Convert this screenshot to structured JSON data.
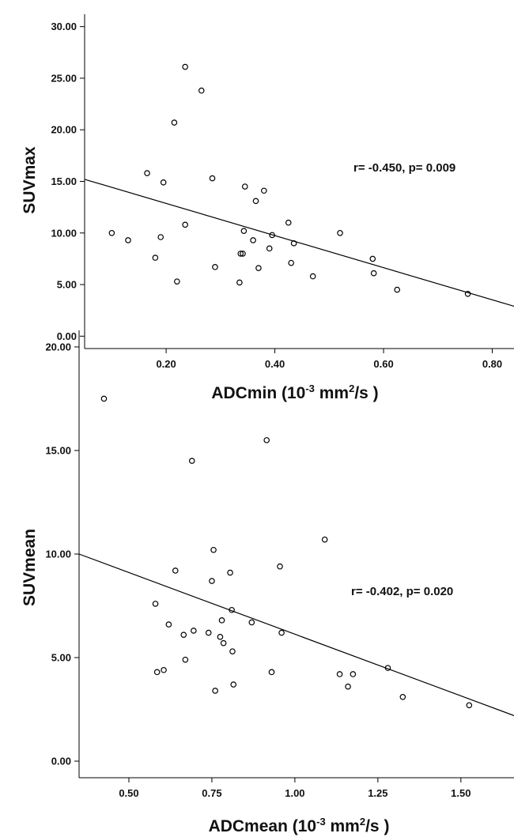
{
  "chart_data": [
    {
      "type": "scatter",
      "xlabel": {
        "main": "ADCmin (10",
        "sup1": "-3",
        "mid": " mm",
        "sup2": "2",
        "tail": "/s )"
      },
      "ylabel": "SUVmax",
      "annotation": "r= -0.450, p= 0.009",
      "xlim": [
        0.05,
        0.84
      ],
      "ylim": [
        -1.2,
        31.2
      ],
      "xticks": [
        0.2,
        0.4,
        0.6,
        0.8
      ],
      "xtick_labels": [
        "0.20",
        "0.40",
        "0.60",
        "0.80"
      ],
      "yticks": [
        0,
        5,
        10,
        15,
        20,
        25,
        30
      ],
      "ytick_labels": [
        "0.00",
        "5.00",
        "10.00",
        "15.00",
        "20.00",
        "25.00",
        "30.00"
      ],
      "fit_line": {
        "x": [
          0.05,
          0.84
        ],
        "y": [
          15.2,
          2.9
        ]
      },
      "points": [
        {
          "x": 0.1,
          "y": 10.0
        },
        {
          "x": 0.13,
          "y": 9.3
        },
        {
          "x": 0.165,
          "y": 15.8
        },
        {
          "x": 0.18,
          "y": 7.6
        },
        {
          "x": 0.19,
          "y": 9.6
        },
        {
          "x": 0.195,
          "y": 14.9
        },
        {
          "x": 0.215,
          "y": 20.7
        },
        {
          "x": 0.22,
          "y": 5.3
        },
        {
          "x": 0.235,
          "y": 26.1
        },
        {
          "x": 0.235,
          "y": 10.8
        },
        {
          "x": 0.265,
          "y": 23.8
        },
        {
          "x": 0.285,
          "y": 15.3
        },
        {
          "x": 0.29,
          "y": 6.7
        },
        {
          "x": 0.335,
          "y": 5.2
        },
        {
          "x": 0.337,
          "y": 8.0
        },
        {
          "x": 0.341,
          "y": 8.0
        },
        {
          "x": 0.343,
          "y": 10.2
        },
        {
          "x": 0.345,
          "y": 14.5
        },
        {
          "x": 0.36,
          "y": 9.3
        },
        {
          "x": 0.365,
          "y": 13.1
        },
        {
          "x": 0.37,
          "y": 6.6
        },
        {
          "x": 0.38,
          "y": 14.1
        },
        {
          "x": 0.39,
          "y": 8.5
        },
        {
          "x": 0.395,
          "y": 9.8
        },
        {
          "x": 0.425,
          "y": 11.0
        },
        {
          "x": 0.43,
          "y": 7.1
        },
        {
          "x": 0.435,
          "y": 9.0
        },
        {
          "x": 0.47,
          "y": 5.8
        },
        {
          "x": 0.52,
          "y": 10.0
        },
        {
          "x": 0.58,
          "y": 7.5
        },
        {
          "x": 0.582,
          "y": 6.1
        },
        {
          "x": 0.625,
          "y": 4.5
        },
        {
          "x": 0.755,
          "y": 4.1
        }
      ]
    },
    {
      "type": "scatter",
      "xlabel": {
        "main": "ADCmean (10",
        "sup1": "-3",
        "mid": " mm",
        "sup2": "2",
        "tail": "/s )"
      },
      "ylabel": "SUVmean",
      "annotation": "r= -0.402, p= 0.020",
      "xlim": [
        0.35,
        1.66
      ],
      "ylim": [
        -0.8,
        20.8
      ],
      "xticks": [
        0.5,
        0.75,
        1.0,
        1.25,
        1.5
      ],
      "xtick_labels": [
        "0.50",
        "0.75",
        "1.00",
        "1.25",
        "1.50"
      ],
      "yticks": [
        0,
        5,
        10,
        15,
        20
      ],
      "ytick_labels": [
        "0.00",
        "5.00",
        "10.00",
        "15.00",
        "20.00"
      ],
      "fit_line": {
        "x": [
          0.35,
          1.66
        ],
        "y": [
          10.0,
          2.2
        ]
      },
      "points": [
        {
          "x": 0.425,
          "y": 17.5
        },
        {
          "x": 0.58,
          "y": 7.6
        },
        {
          "x": 0.585,
          "y": 4.3
        },
        {
          "x": 0.605,
          "y": 4.4
        },
        {
          "x": 0.62,
          "y": 6.6
        },
        {
          "x": 0.64,
          "y": 9.2
        },
        {
          "x": 0.665,
          "y": 6.1
        },
        {
          "x": 0.67,
          "y": 4.9
        },
        {
          "x": 0.69,
          "y": 14.5
        },
        {
          "x": 0.695,
          "y": 6.3
        },
        {
          "x": 0.74,
          "y": 6.2
        },
        {
          "x": 0.75,
          "y": 8.7
        },
        {
          "x": 0.755,
          "y": 10.2
        },
        {
          "x": 0.76,
          "y": 3.4
        },
        {
          "x": 0.775,
          "y": 6.0
        },
        {
          "x": 0.78,
          "y": 6.8
        },
        {
          "x": 0.785,
          "y": 5.7
        },
        {
          "x": 0.805,
          "y": 9.1
        },
        {
          "x": 0.81,
          "y": 7.3
        },
        {
          "x": 0.812,
          "y": 5.3
        },
        {
          "x": 0.815,
          "y": 3.7
        },
        {
          "x": 0.87,
          "y": 6.7
        },
        {
          "x": 0.915,
          "y": 15.5
        },
        {
          "x": 0.93,
          "y": 4.3
        },
        {
          "x": 0.955,
          "y": 9.4
        },
        {
          "x": 0.96,
          "y": 6.2
        },
        {
          "x": 1.09,
          "y": 10.7
        },
        {
          "x": 1.135,
          "y": 4.2
        },
        {
          "x": 1.16,
          "y": 3.6
        },
        {
          "x": 1.175,
          "y": 4.2
        },
        {
          "x": 1.28,
          "y": 4.5
        },
        {
          "x": 1.325,
          "y": 3.1
        },
        {
          "x": 1.525,
          "y": 2.7
        }
      ]
    }
  ]
}
